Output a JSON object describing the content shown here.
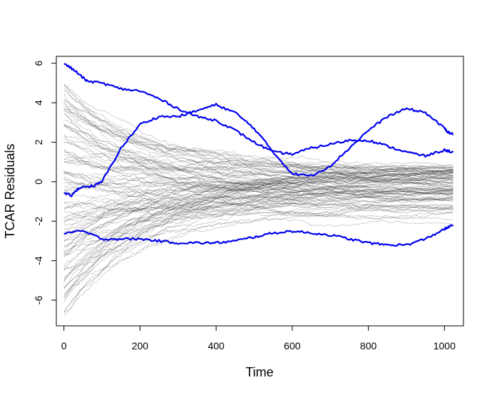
{
  "chart_data": {
    "type": "line",
    "title": "",
    "xlabel": "Time",
    "ylabel": "TCAR Residuals",
    "xlim": [
      -20,
      1050
    ],
    "ylim": [
      -7.3,
      6.35
    ],
    "x_ticks": [
      0,
      200,
      400,
      600,
      800,
      1000
    ],
    "x_tick_labels": [
      "0",
      "200",
      "400",
      "600",
      "800",
      "1000"
    ],
    "y_ticks": [
      -6,
      -4,
      -2,
      0,
      2,
      4,
      6
    ],
    "y_tick_labels": [
      "-6",
      "-4",
      "-2",
      "0",
      "2",
      "4",
      "6"
    ],
    "grid": false,
    "legend": "none",
    "colors": {
      "background_series": "#000000",
      "highlight_series": "#0000ee",
      "axes": "#000000"
    },
    "background_series": {
      "count": 100,
      "x_range": [
        0,
        1023
      ],
      "start_range": [
        -6.8,
        5.0
      ],
      "end_range": [
        -2.3,
        0.8
      ],
      "approx_spread_at": [
        {
          "x": 0,
          "y_min": -6.8,
          "y_max": 5.0
        },
        {
          "x": 200,
          "y_min": -4.6,
          "y_max": 3.7
        },
        {
          "x": 400,
          "y_min": -3.2,
          "y_max": 2.9
        },
        {
          "x": 600,
          "y_min": -2.3,
          "y_max": 2.3
        },
        {
          "x": 800,
          "y_min": -2.0,
          "y_max": 1.5
        },
        {
          "x": 1000,
          "y_min": -2.3,
          "y_max": 0.8
        }
      ]
    },
    "highlight_series": [
      {
        "x": [
          0,
          30,
          60,
          100,
          150,
          200,
          250,
          300,
          350,
          400,
          450,
          500,
          550,
          600,
          650,
          700,
          750,
          800,
          850,
          900,
          950,
          1000,
          1023
        ],
        "y": [
          6.0,
          5.6,
          5.1,
          5.0,
          4.7,
          4.6,
          4.2,
          3.7,
          3.3,
          3.1,
          2.6,
          2.0,
          1.5,
          1.4,
          1.7,
          1.9,
          2.1,
          2.1,
          1.8,
          1.5,
          1.3,
          1.6,
          1.5
        ]
      },
      {
        "x": [
          0,
          20,
          40,
          80,
          100,
          150,
          200,
          250,
          300,
          350,
          400,
          450,
          500,
          550,
          600,
          650,
          700,
          750,
          800,
          850,
          900,
          950,
          1000,
          1010,
          1023
        ],
        "y": [
          -0.6,
          -0.7,
          -0.3,
          -0.2,
          0.0,
          1.7,
          2.9,
          3.3,
          3.3,
          3.6,
          3.9,
          3.5,
          2.7,
          1.5,
          0.4,
          0.3,
          0.8,
          1.7,
          2.6,
          3.3,
          3.7,
          3.5,
          2.7,
          2.5,
          2.4
        ]
      },
      {
        "x": [
          0,
          50,
          100,
          150,
          200,
          250,
          300,
          350,
          400,
          450,
          500,
          550,
          600,
          650,
          700,
          750,
          800,
          850,
          900,
          950,
          1000,
          1023
        ],
        "y": [
          -2.6,
          -2.5,
          -2.9,
          -2.9,
          -2.9,
          -3.0,
          -3.1,
          -3.1,
          -3.1,
          -3.0,
          -2.8,
          -2.6,
          -2.5,
          -2.6,
          -2.7,
          -2.9,
          -3.1,
          -3.2,
          -3.2,
          -2.9,
          -2.4,
          -2.2
        ]
      }
    ]
  }
}
